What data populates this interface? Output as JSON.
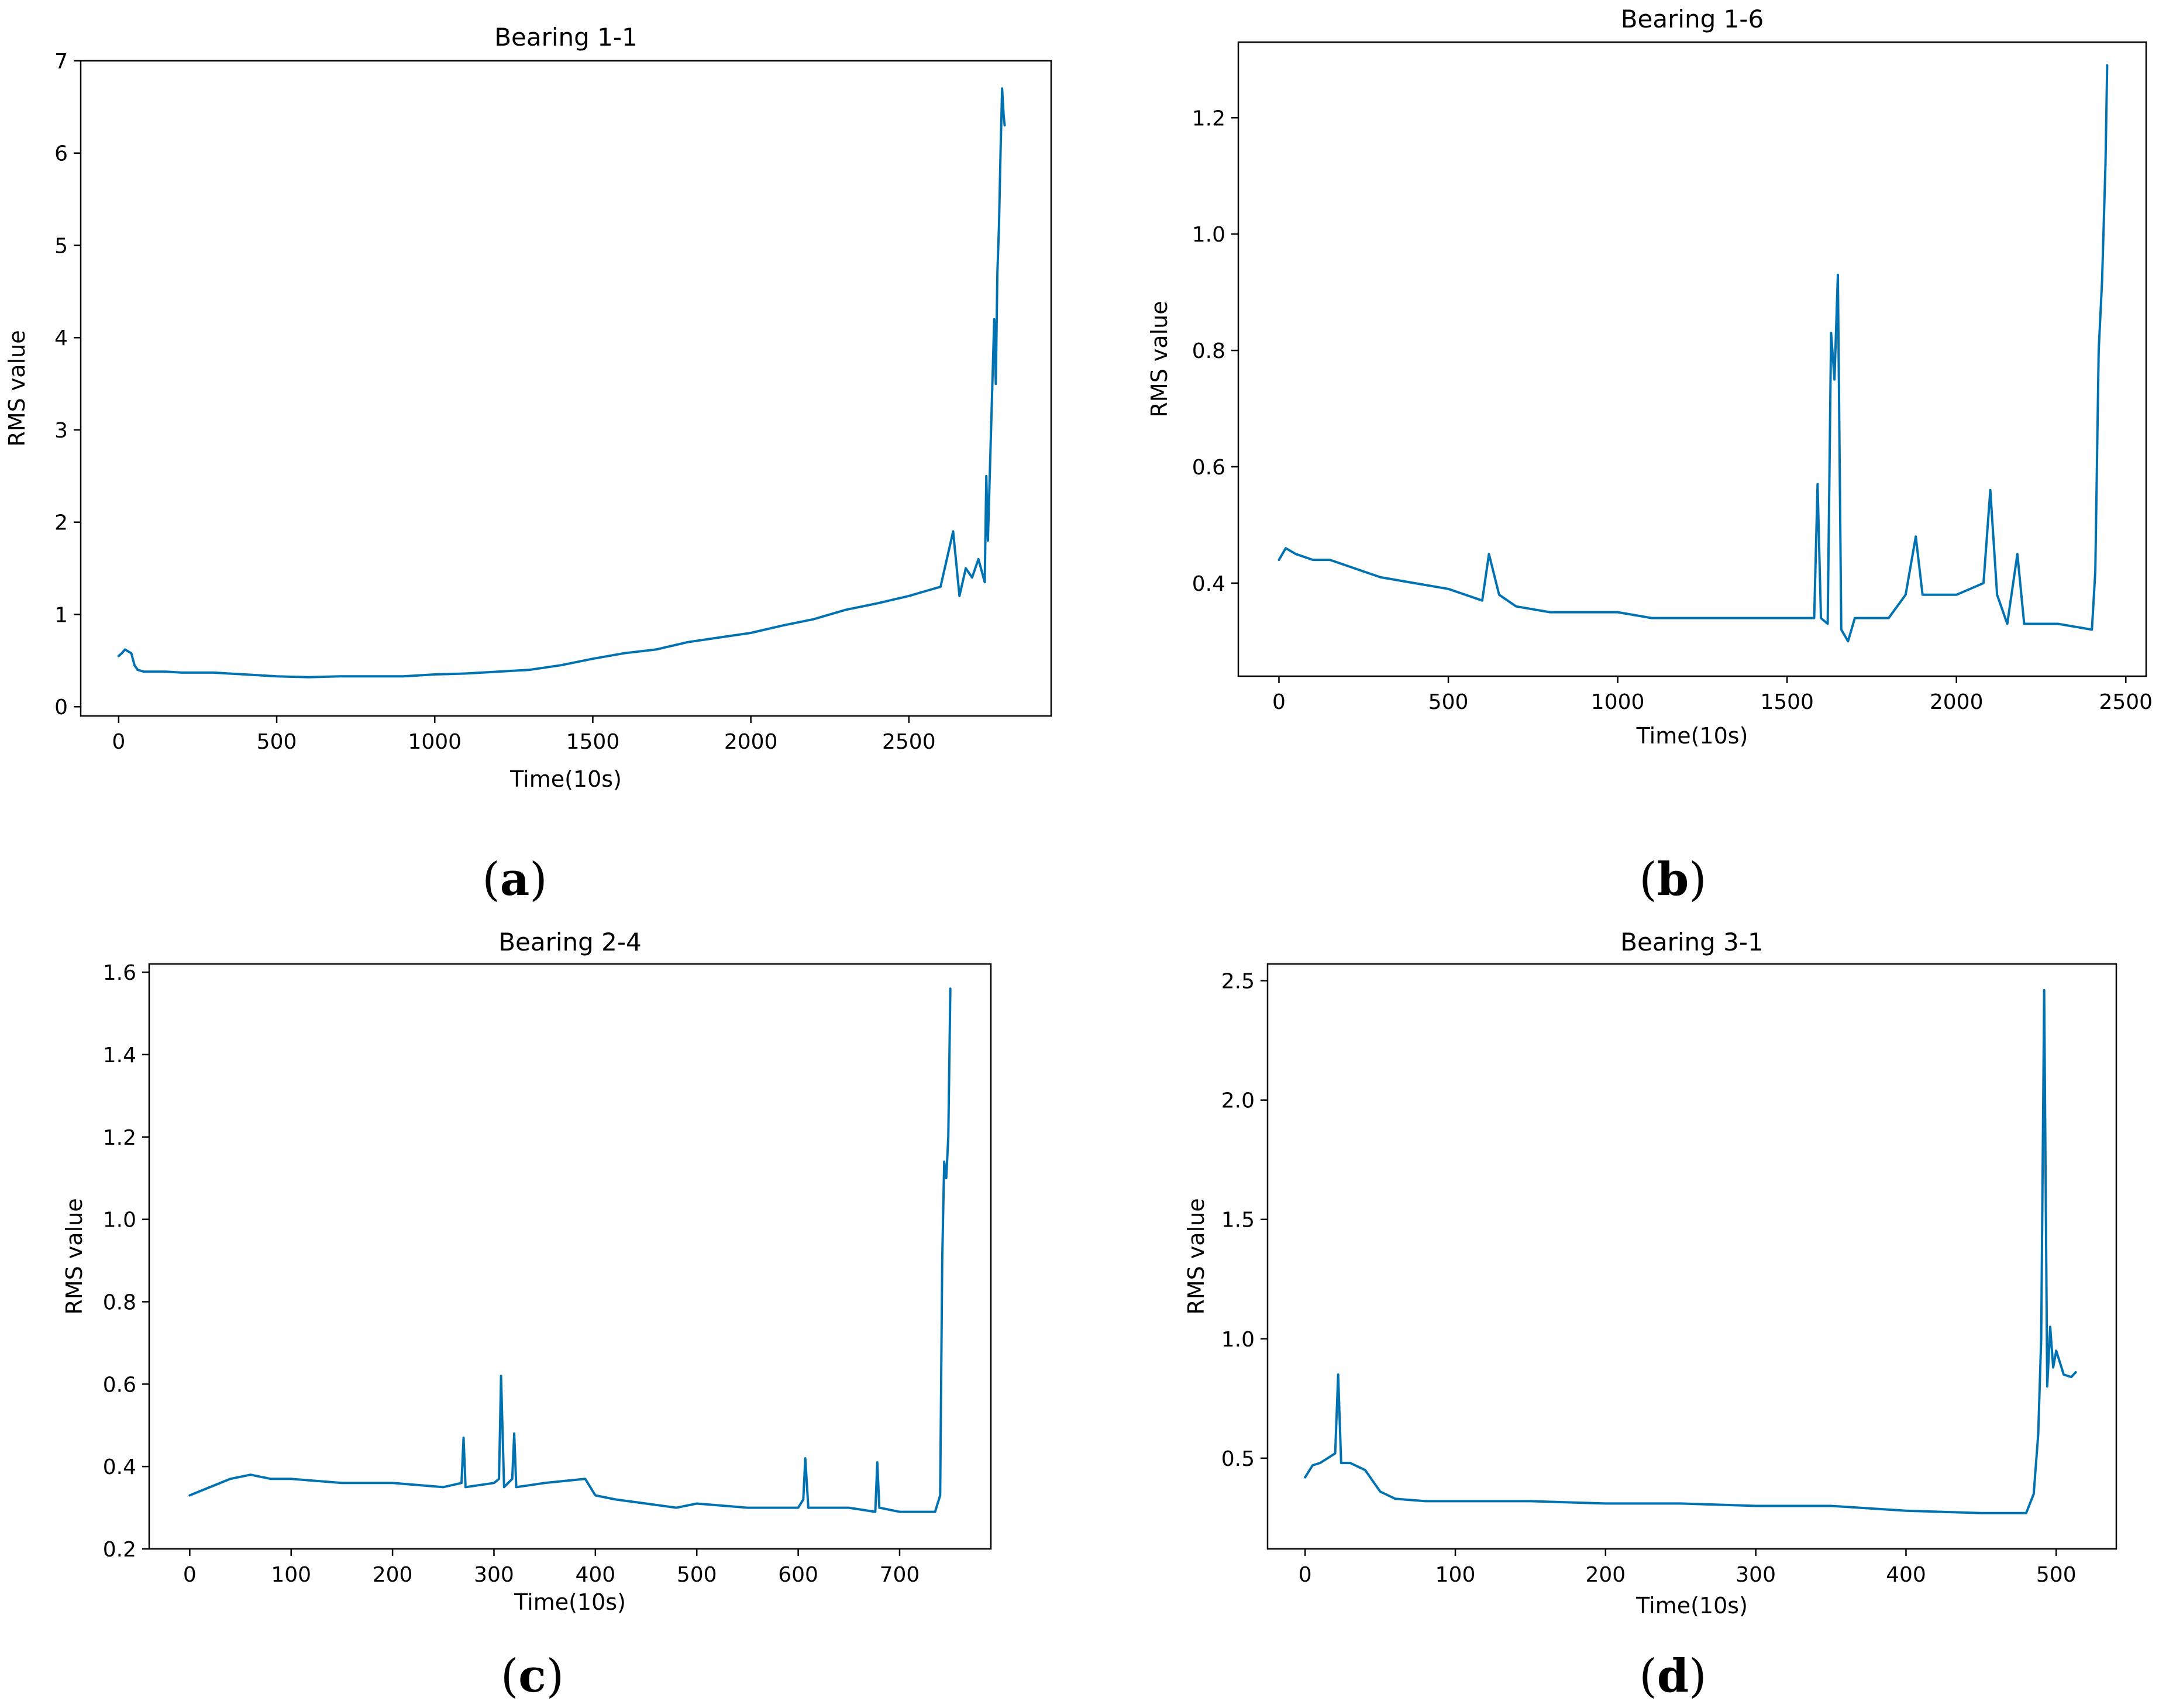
{
  "colors": {
    "series": "#0072b2"
  },
  "chart_data": [
    {
      "type": "line",
      "id": "a",
      "title": "Bearing 1-1",
      "xlabel": "Time(10s)",
      "ylabel": "RMS value",
      "caption_letter": "a",
      "xlim": [
        -120,
        2950
      ],
      "ylim": [
        -0.1,
        7.0
      ],
      "xticks": [
        0,
        500,
        1000,
        1500,
        2000,
        2500
      ],
      "yticks": [
        0,
        1,
        2,
        3,
        4,
        5,
        6,
        7
      ],
      "yticklabels": [
        "0",
        "1",
        "2",
        "3",
        "4",
        "5",
        "6",
        "7"
      ],
      "grid": false,
      "series": [
        {
          "name": "RMS",
          "x": [
            0,
            10,
            20,
            30,
            40,
            50,
            60,
            80,
            100,
            150,
            200,
            300,
            400,
            500,
            600,
            700,
            800,
            900,
            1000,
            1100,
            1200,
            1300,
            1400,
            1500,
            1600,
            1700,
            1800,
            1900,
            2000,
            2100,
            2200,
            2300,
            2400,
            2500,
            2550,
            2600,
            2640,
            2660,
            2680,
            2700,
            2720,
            2740,
            2745,
            2750,
            2760,
            2770,
            2775,
            2780,
            2785,
            2790,
            2795,
            2800,
            2803
          ],
          "y": [
            0.55,
            0.58,
            0.62,
            0.6,
            0.58,
            0.45,
            0.4,
            0.38,
            0.38,
            0.38,
            0.37,
            0.37,
            0.35,
            0.33,
            0.32,
            0.33,
            0.33,
            0.33,
            0.35,
            0.36,
            0.38,
            0.4,
            0.45,
            0.52,
            0.58,
            0.62,
            0.7,
            0.75,
            0.8,
            0.88,
            0.95,
            1.05,
            1.12,
            1.2,
            1.25,
            1.3,
            1.9,
            1.2,
            1.5,
            1.4,
            1.6,
            1.35,
            2.5,
            1.8,
            3.0,
            4.2,
            3.5,
            4.7,
            5.2,
            6.0,
            6.7,
            6.4,
            6.3
          ]
        }
      ]
    },
    {
      "type": "line",
      "id": "b",
      "title": "Bearing 1-6",
      "xlabel": "Time(10s)",
      "ylabel": "RMS value",
      "caption_letter": "b",
      "xlim": [
        -120,
        2560
      ],
      "ylim": [
        0.24,
        1.33
      ],
      "xticks": [
        0,
        500,
        1000,
        1500,
        2000,
        2500
      ],
      "yticks": [
        0.4,
        0.6,
        0.8,
        1.0,
        1.2
      ],
      "yticklabels": [
        "0.4",
        "0.6",
        "0.8",
        "1.0",
        "1.2"
      ],
      "grid": false,
      "series": [
        {
          "name": "RMS",
          "x": [
            0,
            20,
            50,
            100,
            150,
            200,
            250,
            300,
            400,
            500,
            600,
            620,
            650,
            700,
            800,
            900,
            1000,
            1100,
            1200,
            1300,
            1400,
            1500,
            1580,
            1590,
            1600,
            1620,
            1630,
            1640,
            1650,
            1660,
            1680,
            1700,
            1800,
            1850,
            1880,
            1900,
            2000,
            2080,
            2100,
            2120,
            2150,
            2180,
            2200,
            2300,
            2400,
            2410,
            2420,
            2430,
            2440,
            2445
          ],
          "y": [
            0.44,
            0.46,
            0.45,
            0.44,
            0.44,
            0.43,
            0.42,
            0.41,
            0.4,
            0.39,
            0.37,
            0.45,
            0.38,
            0.36,
            0.35,
            0.35,
            0.35,
            0.34,
            0.34,
            0.34,
            0.34,
            0.34,
            0.34,
            0.57,
            0.34,
            0.33,
            0.83,
            0.75,
            0.93,
            0.32,
            0.3,
            0.34,
            0.34,
            0.38,
            0.48,
            0.38,
            0.38,
            0.4,
            0.56,
            0.38,
            0.33,
            0.45,
            0.33,
            0.33,
            0.32,
            0.42,
            0.8,
            0.92,
            1.12,
            1.29
          ]
        }
      ]
    },
    {
      "type": "line",
      "id": "c",
      "title": "Bearing 2-4",
      "xlabel": "Time(10s)",
      "ylabel": "RMS value",
      "caption_letter": "c",
      "xlim": [
        -40,
        790
      ],
      "ylim": [
        0.2,
        1.62
      ],
      "xticks": [
        0,
        100,
        200,
        300,
        400,
        500,
        600,
        700
      ],
      "yticks": [
        0.2,
        0.4,
        0.6,
        0.8,
        1.0,
        1.2,
        1.4,
        1.6
      ],
      "yticklabels": [
        "0.2",
        "0.4",
        "0.6",
        "0.8",
        "1.0",
        "1.2",
        "1.4",
        "1.6"
      ],
      "grid": false,
      "series": [
        {
          "name": "RMS",
          "x": [
            0,
            10,
            20,
            40,
            60,
            80,
            100,
            150,
            200,
            250,
            268,
            270,
            272,
            300,
            305,
            307,
            310,
            318,
            320,
            322,
            350,
            390,
            400,
            420,
            450,
            480,
            500,
            550,
            600,
            605,
            607,
            610,
            650,
            676,
            678,
            680,
            700,
            720,
            735,
            740,
            742,
            744,
            746,
            748,
            750
          ],
          "y": [
            0.33,
            0.34,
            0.35,
            0.37,
            0.38,
            0.37,
            0.37,
            0.36,
            0.36,
            0.35,
            0.36,
            0.47,
            0.35,
            0.36,
            0.37,
            0.62,
            0.35,
            0.37,
            0.48,
            0.35,
            0.36,
            0.37,
            0.33,
            0.32,
            0.31,
            0.3,
            0.31,
            0.3,
            0.3,
            0.32,
            0.42,
            0.3,
            0.3,
            0.29,
            0.41,
            0.3,
            0.29,
            0.29,
            0.29,
            0.33,
            0.9,
            1.14,
            1.1,
            1.2,
            1.56
          ]
        }
      ]
    },
    {
      "type": "line",
      "id": "d",
      "title": "Bearing 3-1",
      "xlabel": "Time(10s)",
      "ylabel": "RMS value",
      "caption_letter": "d",
      "xlim": [
        -25,
        540
      ],
      "ylim": [
        0.12,
        2.57
      ],
      "xticks": [
        0,
        100,
        200,
        300,
        400,
        500
      ],
      "yticks": [
        0.5,
        1.0,
        1.5,
        2.0,
        2.5
      ],
      "yticklabels": [
        "0.5",
        "1.0",
        "1.5",
        "2.0",
        "2.5"
      ],
      "grid": false,
      "series": [
        {
          "name": "RMS",
          "x": [
            0,
            5,
            10,
            15,
            20,
            22,
            24,
            30,
            40,
            50,
            60,
            80,
            100,
            150,
            200,
            250,
            300,
            350,
            400,
            450,
            480,
            485,
            488,
            490,
            492,
            494,
            496,
            498,
            500,
            505,
            510,
            513
          ],
          "y": [
            0.42,
            0.47,
            0.48,
            0.5,
            0.52,
            0.85,
            0.48,
            0.48,
            0.45,
            0.36,
            0.33,
            0.32,
            0.32,
            0.32,
            0.31,
            0.31,
            0.3,
            0.3,
            0.28,
            0.27,
            0.27,
            0.35,
            0.6,
            1.0,
            2.46,
            0.8,
            1.05,
            0.88,
            0.95,
            0.85,
            0.84,
            0.86
          ]
        }
      ]
    }
  ]
}
